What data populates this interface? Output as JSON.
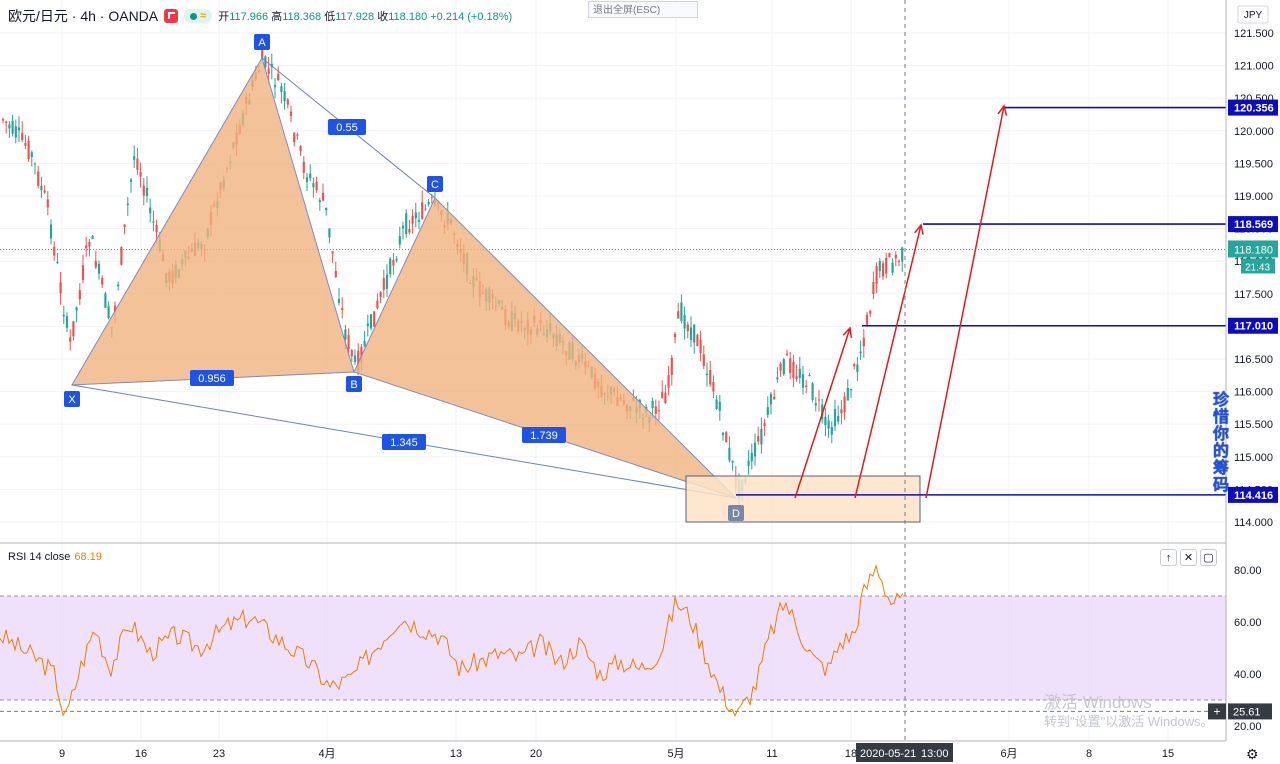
{
  "header": {
    "symbol": "欧元/日元 · 4h · OANDA",
    "ohlc_open_label": "开",
    "ohlc_open": "117.966",
    "ohlc_high_label": "高",
    "ohlc_high": "118.368",
    "ohlc_low_label": "低",
    "ohlc_low": "117.928",
    "ohlc_close_label": "收",
    "ohlc_close": "118.180",
    "ohlc_change": "+0.214 (+0.18%)",
    "wave_symbol": "≈"
  },
  "esc_tip": "退出全屏(ESC)",
  "currency": "JPY",
  "price_axis": [
    "121.500",
    "121.000",
    "120.500",
    "120.000",
    "119.500",
    "119.000",
    "118.500",
    "118.000",
    "117.500",
    "117.000",
    "116.500",
    "116.000",
    "115.500",
    "115.000",
    "114.500",
    "114.000"
  ],
  "price_levels": {
    "l1": "120.356",
    "l2": "118.569",
    "l3": "117.010",
    "l4": "114.416"
  },
  "current_price": "118.180",
  "countdown": "21:43",
  "pattern": {
    "points": [
      "X",
      "A",
      "B",
      "C",
      "D"
    ],
    "ratios": {
      "xb": "0.956",
      "ac": "0.55",
      "xd": "1.345",
      "bd": "1.739"
    }
  },
  "time_axis": [
    "9",
    "16",
    "23",
    "4月",
    "13",
    "20",
    "5月",
    "11",
    "18",
    "6月",
    "8",
    "15"
  ],
  "crosshair": {
    "date": "2020-05-21",
    "time": "13:00"
  },
  "rsi": {
    "label": "RSI 14 close",
    "value": "68.19",
    "axis": [
      "80.00",
      "60.00",
      "40.00",
      "20.00"
    ],
    "cursor_value": "25.61",
    "buttons": [
      "↑",
      "✕",
      "▢"
    ]
  },
  "watermark": {
    "line1": "激活 Windows",
    "line2": "转到\"设置\"以激活 Windows。"
  },
  "side_note": "珍惜你的筹码",
  "colors": {
    "up": "#26a69a",
    "down": "#ef5350",
    "pattern_fill": "#f0b37e",
    "level_line": "#0d0dbf",
    "arrow": "#e01b1b",
    "rsi_line": "#f57c00",
    "rsi_band": "#e9d7fb"
  }
}
